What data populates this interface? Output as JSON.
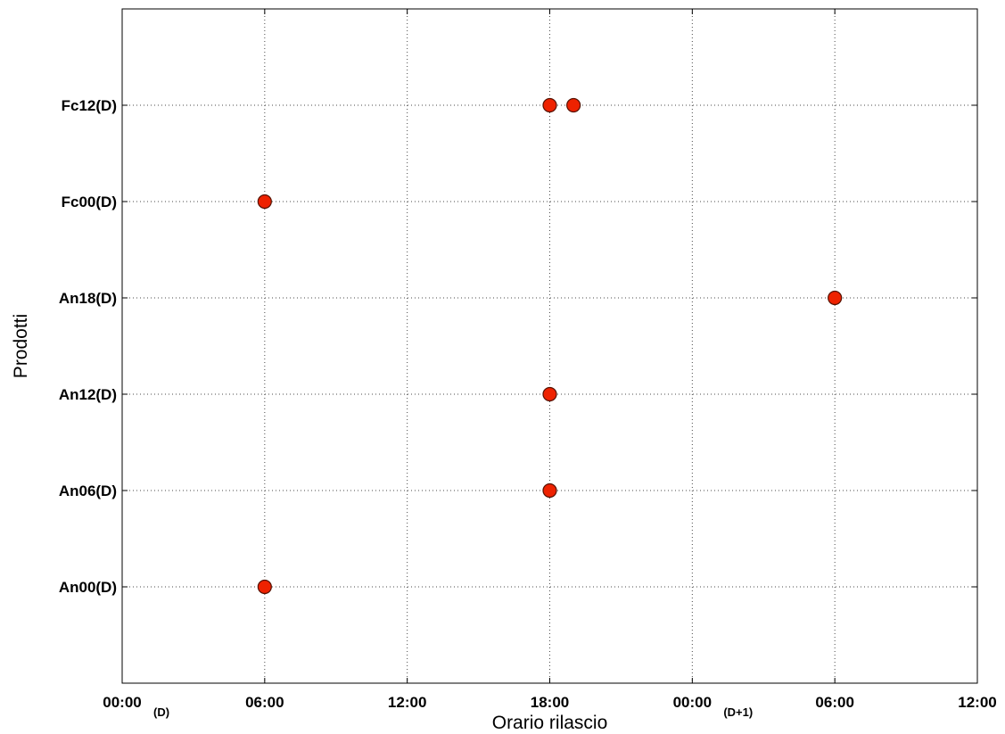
{
  "chart_data": {
    "type": "scatter",
    "xlabel": "Orario rilascio",
    "ylabel": "Prodotti",
    "x_unit": "hours",
    "xlim": [
      0,
      36
    ],
    "x_ticks": [
      {
        "value": 0,
        "label": "00:00"
      },
      {
        "value": 6,
        "label": "06:00"
      },
      {
        "value": 12,
        "label": "12:00"
      },
      {
        "value": 18,
        "label": "18:00"
      },
      {
        "value": 24,
        "label": "00:00"
      },
      {
        "value": 30,
        "label": "06:00"
      },
      {
        "value": 36,
        "label": "12:00"
      }
    ],
    "day_markers": [
      {
        "value": 0,
        "label": "(D)"
      },
      {
        "value": 24,
        "label": "(D+1)"
      }
    ],
    "categories": [
      "An00(D)",
      "An06(D)",
      "An12(D)",
      "An18(D)",
      "Fc00(D)",
      "Fc12(D)"
    ],
    "ylim": [
      0,
      7
    ],
    "grid": true,
    "legend": "none",
    "marker_color": "#ee2200",
    "points": [
      {
        "category": "An00(D)",
        "x": 6
      },
      {
        "category": "An06(D)",
        "x": 18
      },
      {
        "category": "An12(D)",
        "x": 18
      },
      {
        "category": "An18(D)",
        "x": 30
      },
      {
        "category": "Fc00(D)",
        "x": 6
      },
      {
        "category": "Fc12(D)",
        "x": 18
      },
      {
        "category": "Fc12(D)",
        "x": 19
      }
    ]
  }
}
